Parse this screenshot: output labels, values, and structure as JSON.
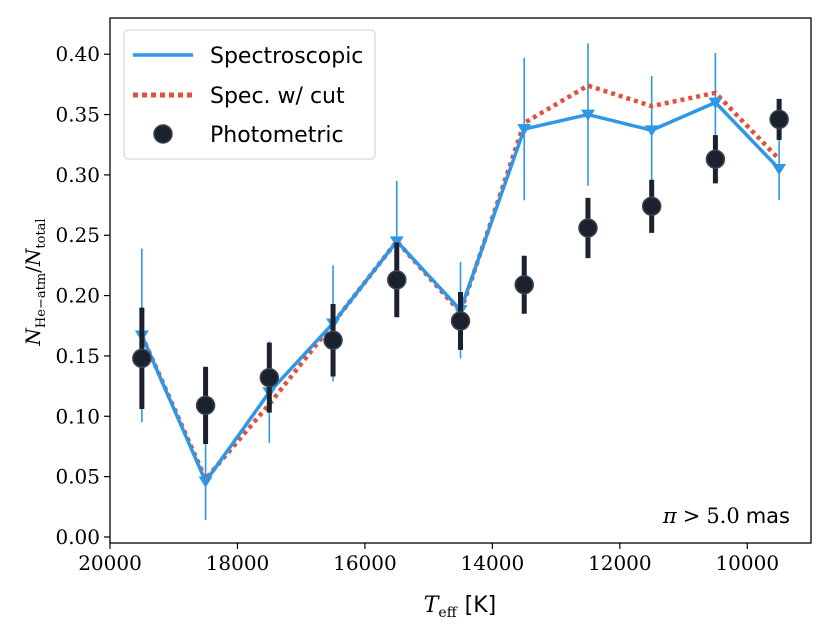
{
  "chart_data": {
    "type": "line",
    "x_axis": {
      "label_symbol": "T",
      "label_subscript": "eff",
      "label_unit": "[K]",
      "xlim": [
        20000,
        9000
      ],
      "ticks": [
        20000,
        18000,
        16000,
        14000,
        12000,
        10000
      ],
      "tick_labels": [
        "20000",
        "18000",
        "16000",
        "14000",
        "12000",
        "10000"
      ],
      "inverted": true
    },
    "y_axis": {
      "label_symbol_1": "N",
      "label_sub_1": "He−atm",
      "label_slash": "/",
      "label_symbol_2": "N",
      "label_sub_2": "total",
      "ylim": [
        -0.005,
        0.43
      ],
      "ticks": [
        0.0,
        0.05,
        0.1,
        0.15,
        0.2,
        0.25,
        0.3,
        0.35,
        0.4
      ],
      "tick_labels": [
        "0.00",
        "0.05",
        "0.10",
        "0.15",
        "0.20",
        "0.25",
        "0.30",
        "0.35",
        "0.40"
      ]
    },
    "grid": false,
    "legend": {
      "location": "top-left",
      "entries": [
        "Spectroscopic",
        "Spec. w/ cut",
        "Photometric"
      ]
    },
    "annotation": {
      "symbol": "π",
      "relation": ">",
      "value": "5.0",
      "unit": "mas",
      "location": "bottom-right"
    },
    "series": [
      {
        "name": "Spectroscopic",
        "style": "solid line with downward-triangle markers",
        "color": "#2e97e6",
        "x": [
          19500,
          18500,
          17500,
          16500,
          15500,
          14500,
          13500,
          12500,
          11500,
          10500,
          9500
        ],
        "y": [
          0.167,
          0.046,
          0.12,
          0.177,
          0.245,
          0.188,
          0.338,
          0.35,
          0.337,
          0.36,
          0.305
        ],
        "y_err": [
          0.072,
          0.032,
          0.042,
          0.048,
          0.05,
          0.04,
          0.059,
          0.059,
          0.045,
          0.041,
          0.026
        ]
      },
      {
        "name": "Spec. w/ cut",
        "style": "dotted line",
        "color": "#e0523e",
        "x": [
          19500,
          18500,
          17500,
          16500,
          15500,
          14500,
          13500,
          12500,
          11500,
          10500,
          9500
        ],
        "y": [
          0.167,
          0.048,
          0.11,
          0.177,
          0.245,
          0.186,
          0.343,
          0.374,
          0.357,
          0.368,
          0.313
        ]
      },
      {
        "name": "Photometric",
        "style": "circle markers with thick error bars",
        "color": "#1b222d",
        "x": [
          19500,
          18500,
          17500,
          16500,
          15500,
          14500,
          13500,
          12500,
          11500,
          10500,
          9500
        ],
        "y": [
          0.148,
          0.109,
          0.132,
          0.163,
          0.213,
          0.179,
          0.209,
          0.256,
          0.274,
          0.313,
          0.346
        ],
        "y_err": [
          0.042,
          0.032,
          0.029,
          0.03,
          0.031,
          0.024,
          0.024,
          0.025,
          0.022,
          0.02,
          0.017
        ]
      }
    ]
  }
}
